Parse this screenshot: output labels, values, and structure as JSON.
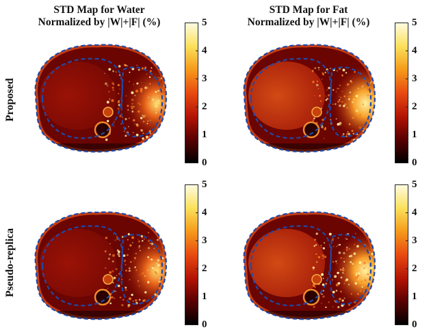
{
  "columns": [
    {
      "title_line1": "STD Map for Water",
      "title_line2": "Normalized by |W|+|F| (%)"
    },
    {
      "title_line1": "STD Map for Fat",
      "title_line2": "Normalized by |W|+|F| (%)"
    }
  ],
  "rows": [
    {
      "label": "Proposed"
    },
    {
      "label": "Pseudo-replica"
    }
  ],
  "colorbar": {
    "ticks": [
      "5",
      "4",
      "3",
      "2",
      "1",
      "0"
    ],
    "min": 0,
    "max": 5,
    "colormap": "hot",
    "colors": [
      "#000000",
      "#5a0000",
      "#b41405",
      "#e84a10",
      "#f59a1a",
      "#fbe05a",
      "#fffbe0"
    ]
  },
  "overlay": {
    "contour_color": "#1f4aa8",
    "contour_style": "dashed"
  }
}
